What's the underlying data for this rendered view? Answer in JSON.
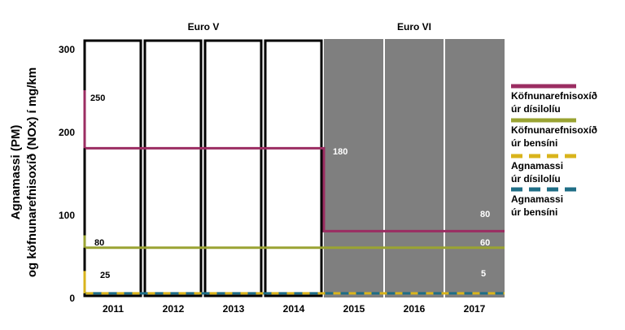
{
  "chart_data": {
    "type": "line",
    "ylabel_line1": "Agnamassi  (PM)",
    "ylabel_line2": "og köfnunarefnisoxíð  (NOx) í mg/km",
    "ylim": [
      0,
      300
    ],
    "yticks": [
      0,
      100,
      200,
      300
    ],
    "categories": [
      "2011",
      "2012",
      "2013",
      "2014",
      "2015",
      "2016",
      "2017"
    ],
    "eras": [
      {
        "label": "Euro V",
        "years": [
          "2011",
          "2012",
          "2013",
          "2014"
        ],
        "shaded": false
      },
      {
        "label": "Euro VI",
        "years": [
          "2015",
          "2016",
          "2017"
        ],
        "shaded": true
      }
    ],
    "series": [
      {
        "name_line1": "Köfnunarefnisoxíð",
        "name_line2": "úr dísilolíu",
        "color": "#9b2d62",
        "style": "solid",
        "values": [
          180,
          180,
          180,
          180,
          80,
          80,
          80
        ]
      },
      {
        "name_line1": "Köfnunarefnisoxíð",
        "name_line2": "úr bensíni",
        "color": "#9aa332",
        "style": "solid",
        "values": [
          60,
          60,
          60,
          60,
          60,
          60,
          60
        ]
      },
      {
        "name_line1": "Agnamassi",
        "name_line2": "úr dísilolíu",
        "color": "#d9b41c",
        "style": "dashed",
        "values": [
          5,
          5,
          5,
          5,
          5,
          5,
          5
        ]
      },
      {
        "name_line1": "Agnamassi",
        "name_line2": "úr bensíni",
        "color": "#1f6e86",
        "style": "dashed",
        "values": [
          5,
          5,
          5,
          5,
          5,
          5,
          5
        ]
      }
    ],
    "annotations": [
      {
        "text": "250",
        "color": "#000000"
      },
      {
        "text": "80",
        "color": "#000000"
      },
      {
        "text": "25",
        "color": "#000000"
      },
      {
        "text": "180",
        "color": "#ffffff"
      },
      {
        "text": "80",
        "color": "#ffffff"
      },
      {
        "text": "60",
        "color": "#ffffff"
      },
      {
        "text": "5",
        "color": "#ffffff"
      }
    ],
    "grid": false,
    "legend_position": "right"
  }
}
